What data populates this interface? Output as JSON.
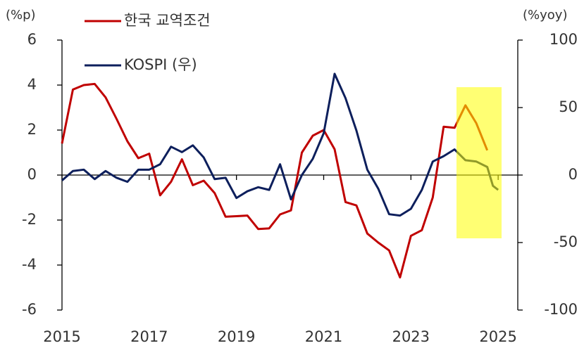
{
  "chart_data": {
    "type": "line",
    "y_label": "(%p)",
    "y2_label": "(%yoy)",
    "xlim": [
      2015,
      2025.45
    ],
    "xticks": [
      2015,
      2017,
      2019,
      2021,
      2023,
      2025
    ],
    "ylim": [
      -6,
      6
    ],
    "yticks": [
      -6,
      -4,
      -2,
      0,
      2,
      4,
      6
    ],
    "y2lim": [
      -100,
      100
    ],
    "y2ticks": [
      -100,
      -50,
      0,
      50,
      100
    ],
    "series": [
      {
        "name": "한국 교역조건",
        "color": "#c00000",
        "axis": "y",
        "x": [
          2015,
          2015.25,
          2015.5,
          2015.75,
          2016,
          2016.25,
          2016.5,
          2016.75,
          2017,
          2017.25,
          2017.5,
          2017.75,
          2018,
          2018.25,
          2018.5,
          2018.75,
          2019,
          2019.25,
          2019.5,
          2019.75,
          2020,
          2020.25,
          2020.5,
          2020.75,
          2021,
          2021.25,
          2021.5,
          2021.75,
          2022,
          2022.25,
          2022.5,
          2022.75,
          2023,
          2023.25,
          2023.5,
          2023.75,
          2024,
          2024.25,
          2024.5,
          2024.75
        ],
        "values": [
          1.4,
          3.8,
          4.0,
          4.05,
          3.45,
          2.5,
          1.5,
          0.75,
          0.95,
          -0.9,
          -0.3,
          0.7,
          -0.45,
          -0.25,
          -0.8,
          -1.85,
          -1.83,
          -1.8,
          -2.4,
          -2.37,
          -1.75,
          -1.57,
          1.0,
          1.75,
          2.0,
          1.15,
          -1.2,
          -1.35,
          -2.6,
          -3.0,
          -3.35,
          -4.55,
          -2.7,
          -2.45,
          -1.0,
          2.15,
          2.1,
          3.1,
          2.3,
          1.1
        ]
      },
      {
        "name": "KOSPI (우)",
        "color": "#0d1f5c",
        "axis": "y2",
        "x": [
          2015,
          2015.25,
          2015.5,
          2015.75,
          2016,
          2016.25,
          2016.5,
          2016.75,
          2017,
          2017.25,
          2017.5,
          2017.75,
          2018,
          2018.25,
          2018.5,
          2018.75,
          2019,
          2019.25,
          2019.5,
          2019.75,
          2020,
          2020.25,
          2020.5,
          2020.75,
          2021,
          2021.25,
          2021.5,
          2021.75,
          2022,
          2022.25,
          2022.5,
          2022.75,
          2023,
          2023.25,
          2023.5,
          2023.75,
          2024,
          2024.25,
          2024.5,
          2024.75,
          2024.88,
          2025
        ],
        "values": [
          -4,
          3,
          4,
          -3,
          3,
          -2,
          -5,
          4,
          4,
          8,
          21,
          17,
          22,
          13,
          -3,
          -2,
          -17,
          -12,
          -9,
          -11,
          8,
          -18,
          0,
          12,
          31,
          75,
          57,
          33,
          4,
          -10,
          -29,
          -30,
          -25,
          -11,
          10,
          14,
          19,
          11,
          10,
          6,
          -8,
          -11
        ]
      }
    ]
  }
}
